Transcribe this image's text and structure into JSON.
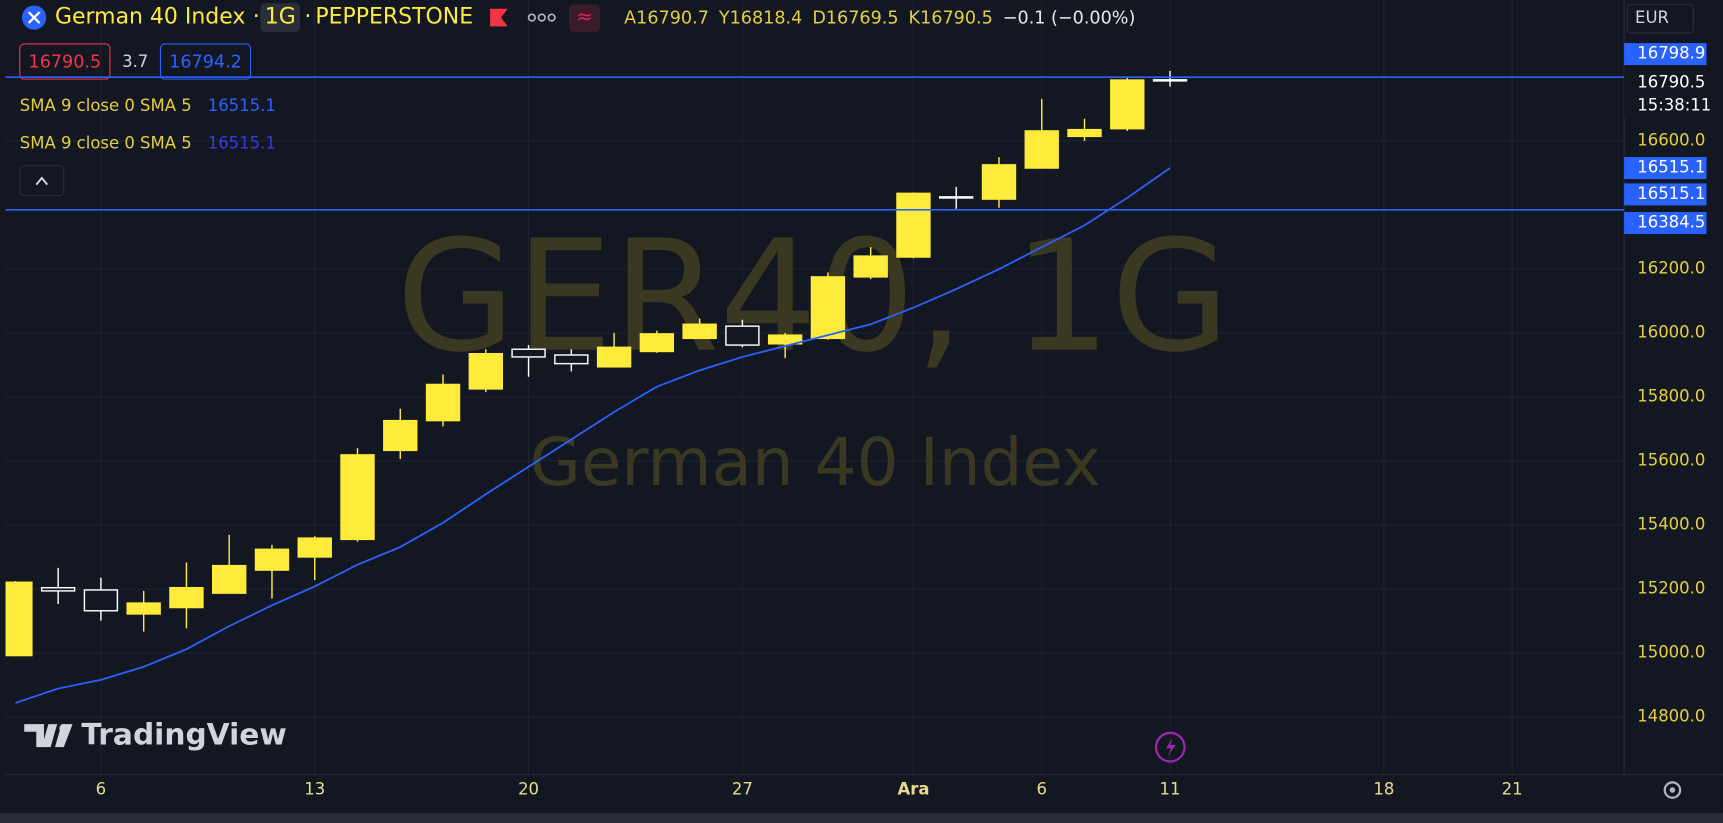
{
  "header": {
    "symbol": "German 40 Index",
    "interval": "1G",
    "exchange": "PEPPERSTONE",
    "ohlc": [
      {
        "label": "A",
        "value": 16790.7
      },
      {
        "label": "Y",
        "value": 16818.4
      },
      {
        "label": "D",
        "value": 16769.5
      },
      {
        "label": "K",
        "value": 16790.5
      }
    ],
    "change": "−0.1 (−0.00%)",
    "currency": "EUR",
    "trade": {
      "sell": 16790.5,
      "spread": 3.7,
      "buy": 16794.2
    },
    "watermark": "GER40, 1G",
    "watermark_subtitle": "German 40 Index",
    "logo": "TradingView"
  },
  "chart_data": {
    "type": "candlestick",
    "categories": [
      null,
      null,
      "6",
      null,
      null,
      null,
      null,
      "13",
      null,
      null,
      null,
      null,
      "20",
      null,
      null,
      null,
      null,
      "27",
      null,
      null,
      null,
      "Ara",
      null,
      null,
      "6",
      null,
      null,
      "11",
      null,
      null,
      null,
      null,
      "18",
      null,
      null,
      "21",
      null,
      null
    ],
    "open": [
      14992,
      15204,
      15197,
      15122,
      15142,
      15187,
      15259,
      15300,
      15355,
      15633,
      15726,
      15825,
      15949,
      15931,
      15894,
      15942,
      15983,
      16021,
      15966,
      15983,
      16175,
      16237,
      16425,
      16418,
      16515,
      16614,
      16638,
      16790.7,
      null,
      null,
      null,
      null,
      null,
      null,
      null,
      null,
      null,
      null
    ],
    "high": [
      15225,
      15266,
      15235,
      15194,
      15283,
      15369,
      15338,
      15365,
      15640,
      15763,
      15870,
      15949,
      15962,
      15949,
      16000,
      16007,
      16045,
      16041,
      16000,
      16189,
      16268,
      16439,
      16456,
      16549,
      16731,
      16669,
      16799,
      16818.4,
      null,
      null,
      null,
      null,
      null,
      null,
      null,
      null,
      null,
      null
    ],
    "low": [
      14990,
      15153,
      15101,
      15067,
      15077,
      15187,
      15170,
      15228,
      15348,
      15606,
      15708,
      15815,
      15863,
      15880,
      15894,
      15938,
      15983,
      15955,
      15921,
      15979,
      16168,
      16233,
      16388,
      16391,
      16515,
      16600,
      16631,
      16769.5,
      null,
      null,
      null,
      null,
      null,
      null,
      null,
      null,
      null,
      null
    ],
    "close": [
      15221,
      15194,
      15132,
      15156,
      15204,
      15273,
      15324,
      15359,
      15619,
      15726,
      15839,
      15935,
      15925,
      15904,
      15955,
      15997,
      16027,
      15962,
      15993,
      16175,
      16240,
      16436,
      16422,
      16525,
      16631,
      16635,
      16790,
      16790.5,
      null,
      null,
      null,
      null,
      null,
      null,
      null,
      null,
      null,
      null
    ],
    "up_color": "#ffeb3b",
    "down_color": "#ffffff",
    "sma_values": [
      14844,
      14889,
      14916,
      14957,
      15012,
      15084,
      15149,
      15208,
      15276,
      15331,
      15407,
      15496,
      15582,
      15667,
      15753,
      15832,
      15883,
      15925,
      15959,
      15993,
      16027,
      16079,
      16137,
      16199,
      16268,
      16336,
      16422,
      16515.1,
      null,
      null,
      null,
      null,
      null,
      null,
      null,
      null,
      null,
      null
    ],
    "indicators": [
      {
        "name": "SMA 9 close 0 SMA 5",
        "value": 16515.1,
        "color": "#2962ff"
      },
      {
        "name": "SMA 9 close 0 SMA 5",
        "value": 16515.1,
        "color": "#3a3ae0"
      }
    ],
    "hlines": [
      16798.9,
      16384.5
    ],
    "hline_color": "#2962ff",
    "countdown": "15:38:11",
    "ylim": [
      14620,
      17040
    ],
    "yticks": [
      {
        "value": 14800,
        "label": "14800.0"
      },
      {
        "value": 15000,
        "label": "15000.0"
      },
      {
        "value": 15200,
        "label": "15200.0"
      },
      {
        "value": 15400,
        "label": "15400.0"
      },
      {
        "value": 15600,
        "label": "15600.0"
      },
      {
        "value": 15800,
        "label": "15800.0"
      },
      {
        "value": 16000,
        "label": "16000.0"
      },
      {
        "value": 16200,
        "label": "16200.0"
      },
      {
        "value": 16600,
        "label": "16600.0"
      }
    ],
    "grid": true
  }
}
